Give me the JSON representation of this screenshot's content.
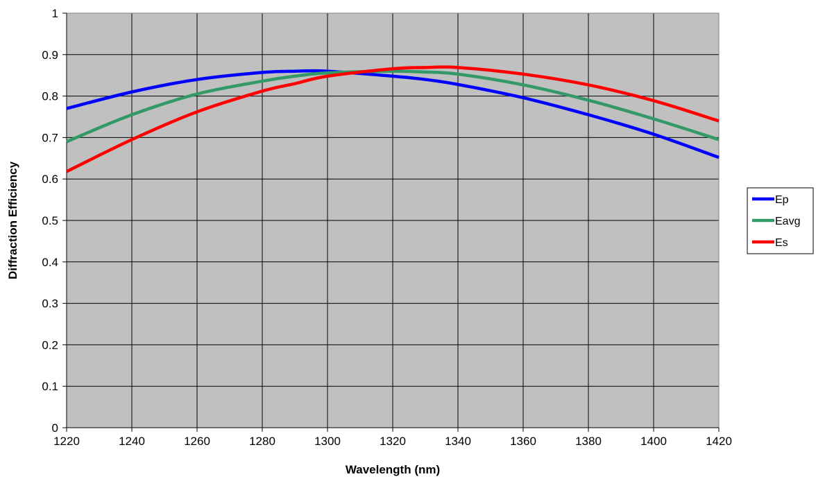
{
  "chart_data": {
    "type": "line",
    "title": "",
    "xlabel": "Wavelength (nm)",
    "ylabel": "Diffraction Efficiency",
    "xlim": [
      1220,
      1420
    ],
    "ylim": [
      0,
      1
    ],
    "x_ticks": [
      1220,
      1240,
      1260,
      1280,
      1300,
      1320,
      1340,
      1360,
      1380,
      1400,
      1420
    ],
    "y_ticks": [
      0,
      0.1,
      0.2,
      0.3,
      0.4,
      0.5,
      0.6,
      0.7,
      0.8,
      0.9,
      1
    ],
    "y_tick_labels": [
      "0",
      "0.1",
      "0.2",
      "0.3",
      "0.4",
      "0.5",
      "0.6",
      "0.7",
      "0.8",
      "0.9",
      "1"
    ],
    "grid": true,
    "plot_background": "#c0c0c0",
    "legend_position": "right",
    "x": [
      1220,
      1240,
      1260,
      1280,
      1290,
      1300,
      1320,
      1330,
      1340,
      1360,
      1380,
      1400,
      1420
    ],
    "series": [
      {
        "name": "Ep",
        "color": "#0000ff",
        "values": [
          0.77,
          0.81,
          0.84,
          0.857,
          0.86,
          0.86,
          0.848,
          0.84,
          0.828,
          0.796,
          0.755,
          0.708,
          0.652
        ]
      },
      {
        "name": "Eavg",
        "color": "#339966",
        "values": [
          0.69,
          0.755,
          0.805,
          0.836,
          0.848,
          0.856,
          0.86,
          0.858,
          0.853,
          0.827,
          0.79,
          0.745,
          0.695
        ]
      },
      {
        "name": "Es",
        "color": "#ff0000",
        "values": [
          0.618,
          0.695,
          0.762,
          0.812,
          0.83,
          0.848,
          0.866,
          0.869,
          0.869,
          0.853,
          0.827,
          0.789,
          0.74
        ]
      }
    ]
  }
}
